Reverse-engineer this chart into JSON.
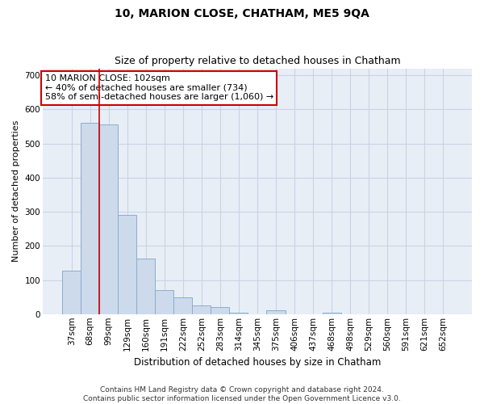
{
  "title": "10, MARION CLOSE, CHATHAM, ME5 9QA",
  "subtitle": "Size of property relative to detached houses in Chatham",
  "xlabel": "Distribution of detached houses by size in Chatham",
  "ylabel": "Number of detached properties",
  "categories": [
    "37sqm",
    "68sqm",
    "99sqm",
    "129sqm",
    "160sqm",
    "191sqm",
    "222sqm",
    "252sqm",
    "283sqm",
    "314sqm",
    "345sqm",
    "375sqm",
    "406sqm",
    "437sqm",
    "468sqm",
    "498sqm",
    "529sqm",
    "560sqm",
    "591sqm",
    "621sqm",
    "652sqm"
  ],
  "values": [
    127,
    560,
    555,
    290,
    163,
    70,
    50,
    25,
    20,
    5,
    0,
    12,
    0,
    0,
    5,
    0,
    0,
    0,
    0,
    0,
    0
  ],
  "bar_color": "#ccdaeb",
  "bar_edgecolor": "#8badd0",
  "vline_color": "#cc0000",
  "annotation_text": "10 MARION CLOSE: 102sqm\n← 40% of detached houses are smaller (734)\n58% of semi-detached houses are larger (1,060) →",
  "annotation_box_edgecolor": "#cc0000",
  "annotation_box_facecolor": "#ffffff",
  "ylim": [
    0,
    720
  ],
  "yticks": [
    0,
    100,
    200,
    300,
    400,
    500,
    600,
    700
  ],
  "grid_color": "#c8d4e4",
  "bg_color": "#e8eef6",
  "footnote": "Contains HM Land Registry data © Crown copyright and database right 2024.\nContains public sector information licensed under the Open Government Licence v3.0.",
  "title_fontsize": 10,
  "subtitle_fontsize": 9,
  "xlabel_fontsize": 8.5,
  "ylabel_fontsize": 8,
  "tick_fontsize": 7.5,
  "annotation_fontsize": 8,
  "footnote_fontsize": 6.5
}
